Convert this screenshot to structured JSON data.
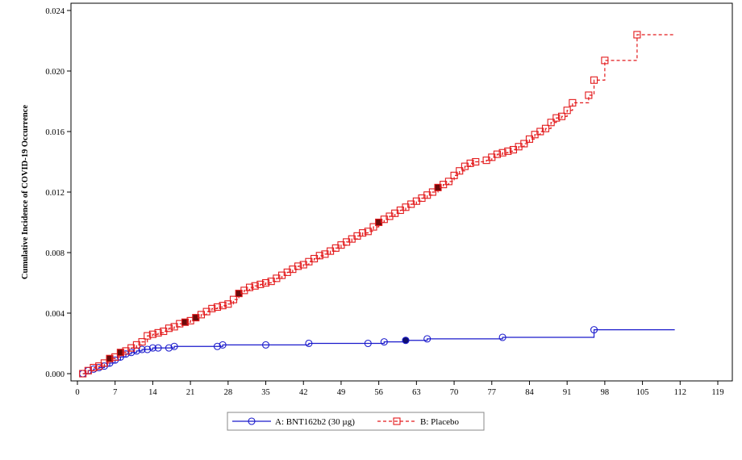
{
  "chart_data": {
    "type": "line",
    "xlabel": "",
    "ylabel": "Cumulative Incidence of COVID-19 Occurrence",
    "xlim": [
      0,
      119
    ],
    "ylim": [
      0,
      0.024
    ],
    "x_ticks": [
      0,
      7,
      14,
      21,
      28,
      35,
      42,
      49,
      56,
      63,
      70,
      77,
      84,
      91,
      98,
      105,
      112,
      119
    ],
    "y_ticks": [
      0.0,
      0.004,
      0.008,
      0.012,
      0.016,
      0.02,
      0.024
    ],
    "x_tick_labels": [
      "0",
      "7",
      "14",
      "21",
      "28",
      "35",
      "42",
      "49",
      "56",
      "63",
      "70",
      "77",
      "84",
      "91",
      "98",
      "105",
      "112",
      "119"
    ],
    "y_tick_labels": [
      "0.000",
      "0.004",
      "0.008",
      "0.012",
      "0.016",
      "0.020",
      "0.024"
    ],
    "grid": false,
    "legend_position": "bottom",
    "series": [
      {
        "name": "A: BNT162b2 (30 µg)",
        "color": "#1a1acc",
        "line_style": "solid",
        "marker": "circle",
        "points": [
          [
            1,
            0.0
          ],
          [
            2,
            0.0002
          ],
          [
            3,
            0.0003
          ],
          [
            4,
            0.0004
          ],
          [
            5,
            0.0005
          ],
          [
            6,
            0.0007
          ],
          [
            7,
            0.0009
          ],
          [
            8,
            0.0011
          ],
          [
            9,
            0.0013
          ],
          [
            10,
            0.0014
          ],
          [
            11,
            0.0015
          ],
          [
            12,
            0.0016
          ],
          [
            13,
            0.0016
          ],
          [
            14,
            0.0017
          ],
          [
            15,
            0.0017
          ],
          [
            17,
            0.0017
          ],
          [
            18,
            0.0018
          ],
          [
            26,
            0.0018
          ],
          [
            27,
            0.0019
          ],
          [
            35,
            0.0019
          ],
          [
            43,
            0.002
          ],
          [
            54,
            0.002
          ],
          [
            57,
            0.0021
          ],
          [
            61,
            0.0022
          ],
          [
            65,
            0.0023
          ],
          [
            79,
            0.0024
          ],
          [
            96,
            0.0029
          ],
          [
            111,
            0.0029
          ]
        ],
        "filled_markers_x": [
          61
        ]
      },
      {
        "name": "B: Placebo",
        "color": "#e31a1c",
        "line_style": "dashed",
        "marker": "square",
        "points": [
          [
            1,
            0.0
          ],
          [
            2,
            0.0002
          ],
          [
            3,
            0.0004
          ],
          [
            4,
            0.0005
          ],
          [
            5,
            0.0007
          ],
          [
            6,
            0.001
          ],
          [
            7,
            0.0011
          ],
          [
            8,
            0.0014
          ],
          [
            9,
            0.0015
          ],
          [
            10,
            0.0017
          ],
          [
            11,
            0.0019
          ],
          [
            12,
            0.0021
          ],
          [
            13,
            0.0025
          ],
          [
            14,
            0.0026
          ],
          [
            15,
            0.0027
          ],
          [
            16,
            0.0028
          ],
          [
            17,
            0.003
          ],
          [
            18,
            0.0031
          ],
          [
            19,
            0.0033
          ],
          [
            20,
            0.0034
          ],
          [
            21,
            0.0035
          ],
          [
            22,
            0.0037
          ],
          [
            23,
            0.0039
          ],
          [
            24,
            0.0041
          ],
          [
            25,
            0.0043
          ],
          [
            26,
            0.0044
          ],
          [
            27,
            0.0045
          ],
          [
            28,
            0.0046
          ],
          [
            29,
            0.0049
          ],
          [
            30,
            0.0053
          ],
          [
            31,
            0.0055
          ],
          [
            32,
            0.0057
          ],
          [
            33,
            0.0058
          ],
          [
            34,
            0.0059
          ],
          [
            35,
            0.006
          ],
          [
            36,
            0.0061
          ],
          [
            37,
            0.0063
          ],
          [
            38,
            0.0065
          ],
          [
            39,
            0.0067
          ],
          [
            40,
            0.0069
          ],
          [
            41,
            0.0071
          ],
          [
            42,
            0.0072
          ],
          [
            43,
            0.0074
          ],
          [
            44,
            0.0076
          ],
          [
            45,
            0.0078
          ],
          [
            46,
            0.0079
          ],
          [
            47,
            0.0081
          ],
          [
            48,
            0.0083
          ],
          [
            49,
            0.0085
          ],
          [
            50,
            0.0087
          ],
          [
            51,
            0.0089
          ],
          [
            52,
            0.0091
          ],
          [
            53,
            0.0093
          ],
          [
            54,
            0.0094
          ],
          [
            55,
            0.0097
          ],
          [
            56,
            0.01
          ],
          [
            57,
            0.0102
          ],
          [
            58,
            0.0104
          ],
          [
            59,
            0.0106
          ],
          [
            60,
            0.0108
          ],
          [
            61,
            0.011
          ],
          [
            62,
            0.0112
          ],
          [
            63,
            0.0114
          ],
          [
            64,
            0.0116
          ],
          [
            65,
            0.0118
          ],
          [
            66,
            0.012
          ],
          [
            67,
            0.0123
          ],
          [
            68,
            0.0125
          ],
          [
            69,
            0.0127
          ],
          [
            70,
            0.0131
          ],
          [
            71,
            0.0134
          ],
          [
            72,
            0.0137
          ],
          [
            73,
            0.0139
          ],
          [
            74,
            0.014
          ],
          [
            76,
            0.0141
          ],
          [
            77,
            0.0143
          ],
          [
            78,
            0.0145
          ],
          [
            79,
            0.0146
          ],
          [
            80,
            0.0147
          ],
          [
            81,
            0.0148
          ],
          [
            82,
            0.015
          ],
          [
            83,
            0.0152
          ],
          [
            84,
            0.0155
          ],
          [
            85,
            0.0158
          ],
          [
            86,
            0.016
          ],
          [
            87,
            0.0162
          ],
          [
            88,
            0.0166
          ],
          [
            89,
            0.0169
          ],
          [
            90,
            0.017
          ],
          [
            91,
            0.0174
          ],
          [
            92,
            0.0179
          ],
          [
            95,
            0.0184
          ],
          [
            96,
            0.0194
          ],
          [
            98,
            0.0207
          ],
          [
            104,
            0.0224
          ],
          [
            111,
            0.0224
          ]
        ],
        "filled_markers_x": [
          6,
          8,
          20,
          22,
          30,
          56,
          67
        ]
      }
    ]
  },
  "legend": {
    "a_label": "A: BNT162b2 (30 µg)",
    "b_label": "B: Placebo"
  }
}
